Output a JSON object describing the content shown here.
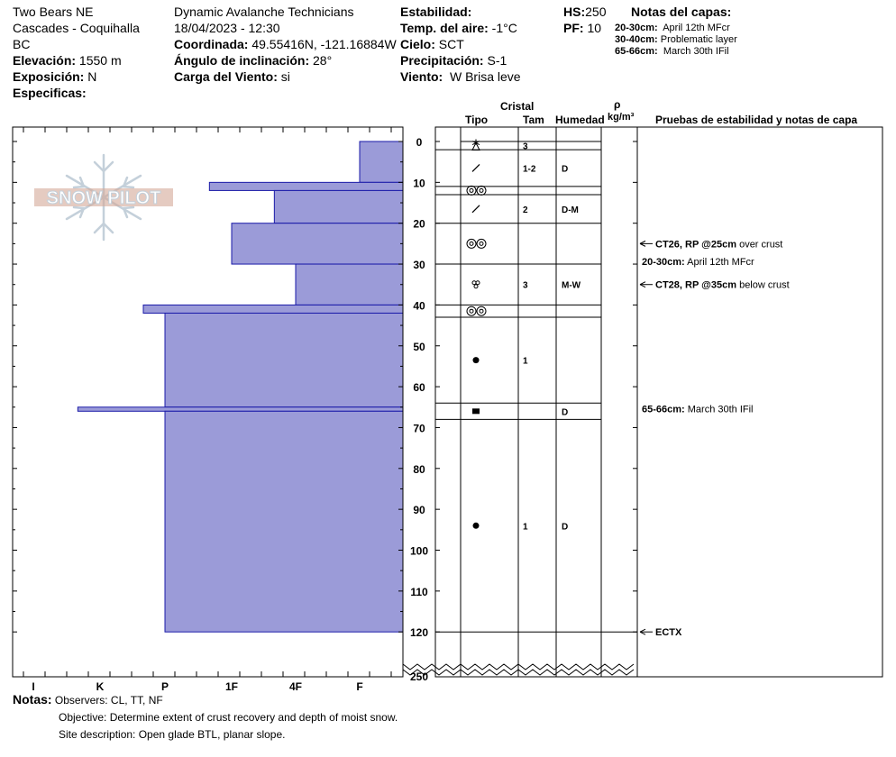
{
  "header": {
    "col1": {
      "location_line1": "Two Bears NE",
      "location_line2": "Cascades - Coquihalla",
      "location_line3": "BC",
      "elevation_label": "Elevación:",
      "elevation_value": "1550 m",
      "aspect_label": "Exposición:",
      "aspect_value": "N",
      "specifics_label": "Especificas:"
    },
    "col2": {
      "org": "Dynamic Avalanche Technicians",
      "datetime": "18/04/2023 - 12:30",
      "coord_label": "Coordinada:",
      "coord_value": "49.55416N, -121.16884W",
      "slope_label": "Ángulo de inclinación:",
      "slope_value": "28°",
      "wind_load_label": "Carga del Viento:",
      "wind_load_value": "si"
    },
    "col3": {
      "stability_label": "Estabilidad:",
      "air_temp_label": "Temp. del aire:",
      "air_temp_value": "-1°C",
      "sky_label": "Cielo:",
      "sky_value": "SCT",
      "precip_label": "Precipitación:",
      "precip_value": "S-1",
      "wind_label": "Viento:",
      "wind_value": "W Brisa leve"
    },
    "col4": {
      "hs_label": "HS:",
      "hs_value": "250",
      "pf_label": "PF:",
      "pf_value": "10"
    },
    "layer_notes": {
      "title": "Notas del capas:",
      "items": [
        {
          "range": "20-30cm:",
          "text": "April 12th MFcr"
        },
        {
          "range": "30-40cm:",
          "text": "Problematic layer"
        },
        {
          "range": "65-66cm:",
          "text": "March 30th IFil"
        }
      ]
    }
  },
  "logo": {
    "text": "SNOW PILOT"
  },
  "columns": {
    "cristal": "Cristal",
    "tipo": "Tipo",
    "tam": "Tam",
    "humedad": "Humedad",
    "rho": "ρ",
    "density_unit": "kg/m³",
    "stability_notes": "Pruebas de estabilidad y notas de capa"
  },
  "chart_data": {
    "type": "snow_profile",
    "hs": 250,
    "depth_ticks": [
      0,
      10,
      20,
      30,
      40,
      50,
      60,
      70,
      80,
      90,
      100,
      110,
      120
    ],
    "depth_break_label": "250",
    "hardness_scale": [
      "I",
      "K",
      "P",
      "1F",
      "4F",
      "F"
    ],
    "hardness_layers": [
      {
        "top": 0,
        "bottom": 10,
        "hardness": "F"
      },
      {
        "top": 10,
        "bottom": 12,
        "hardness": "1F+"
      },
      {
        "top": 12,
        "bottom": 20,
        "hardness": "4F+"
      },
      {
        "top": 20,
        "bottom": 30,
        "hardness": "1F"
      },
      {
        "top": 30,
        "bottom": 40,
        "hardness": "4F"
      },
      {
        "top": 40,
        "bottom": 42,
        "hardness": "P+"
      },
      {
        "top": 42,
        "bottom": 65,
        "hardness": "P"
      },
      {
        "top": 65,
        "bottom": 66,
        "hardness": "K+"
      },
      {
        "top": 66,
        "bottom": 120,
        "hardness": "P"
      }
    ],
    "crystal_rows": [
      {
        "top": 0,
        "bottom": 2,
        "icon": "surface-hoar-icon",
        "size": "3",
        "moisture": ""
      },
      {
        "top": 2,
        "bottom": 11,
        "icon": "decomposing-fragments-icon",
        "size": "1-2",
        "moisture": "D"
      },
      {
        "top": 11,
        "bottom": 13,
        "icon": "melt-freeze-crust-icon",
        "size": "",
        "moisture": ""
      },
      {
        "top": 13,
        "bottom": 20,
        "icon": "decomposing-fragments-icon",
        "size": "2",
        "moisture": "D-M"
      },
      {
        "top": 20,
        "bottom": 30,
        "icon": "melt-freeze-crust-icon",
        "size": "",
        "moisture": ""
      },
      {
        "top": 30,
        "bottom": 40,
        "icon": "clustered-grains-icon",
        "size": "3",
        "moisture": "M-W"
      },
      {
        "top": 40,
        "bottom": 43,
        "icon": "melt-freeze-crust-icon",
        "size": "",
        "moisture": ""
      },
      {
        "top": 43,
        "bottom": 64,
        "icon": "rounded-grains-icon",
        "size": "1",
        "moisture": ""
      },
      {
        "top": 64,
        "bottom": 68,
        "icon": "ice-formation-icon",
        "size": "",
        "moisture": "D"
      },
      {
        "top": 68,
        "bottom": 120,
        "icon": "rounded-grains-icon",
        "size": "1",
        "moisture": "D"
      }
    ],
    "stability_tests": [
      {
        "depth": 25,
        "label_bold": "CT26, RP @25cm",
        "label": "over crust"
      },
      {
        "depth": 35,
        "label_bold": "CT28, RP @35cm",
        "label": "below crust"
      },
      {
        "depth": 120,
        "label_bold": "ECTX",
        "label": ""
      }
    ],
    "layer_comments": [
      {
        "depth": 30,
        "label_bold": "20-30cm:",
        "label": "April 12th MFcr"
      },
      {
        "depth": 66,
        "label_bold": "65-66cm:",
        "label": "March 30th IFil"
      }
    ]
  },
  "notes": {
    "label": "Notas:",
    "observers": "Observers: CL, TT, NF",
    "objective": "Objective: Determine extent of crust recovery and depth of moist snow.",
    "site": "Site description: Open glade BTL, planar slope."
  },
  "colors": {
    "hardness_fill": "#9b9bd8",
    "hardness_stroke": "#1a1aa8",
    "line": "#000000",
    "logo": "#c4d0da"
  }
}
